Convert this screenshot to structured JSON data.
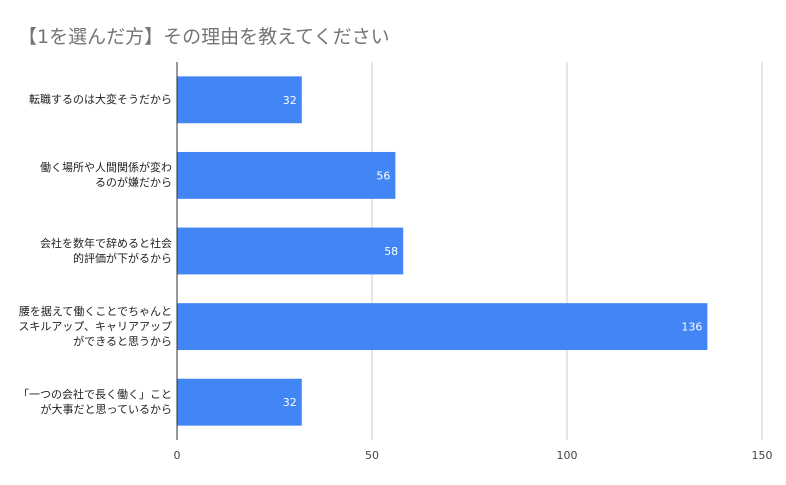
{
  "chart_data": {
    "type": "bar",
    "orientation": "horizontal",
    "title": "【1を選んだ方】その理由を教えてください",
    "categories": [
      "転職するのは大変そうだから",
      "働く場所や人間関係が変わ\nるのが嫌だから",
      "会社を数年で辞めると社会\n的評価が下がるから",
      "腰を据えて働くことでちゃんと\nスキルアップ、キャリアアップ\nができると思うから",
      "「一つの会社で長く働く」こと\nが大事だと思っているから"
    ],
    "values": [
      32,
      56,
      58,
      136,
      32
    ],
    "data_labels": [
      "32",
      "56",
      "58",
      "136",
      "32"
    ],
    "xlim": [
      0,
      150
    ],
    "xticks": [
      0,
      50,
      100,
      150
    ],
    "grid": true,
    "legend": "none",
    "bar_color": "#4285f4"
  }
}
